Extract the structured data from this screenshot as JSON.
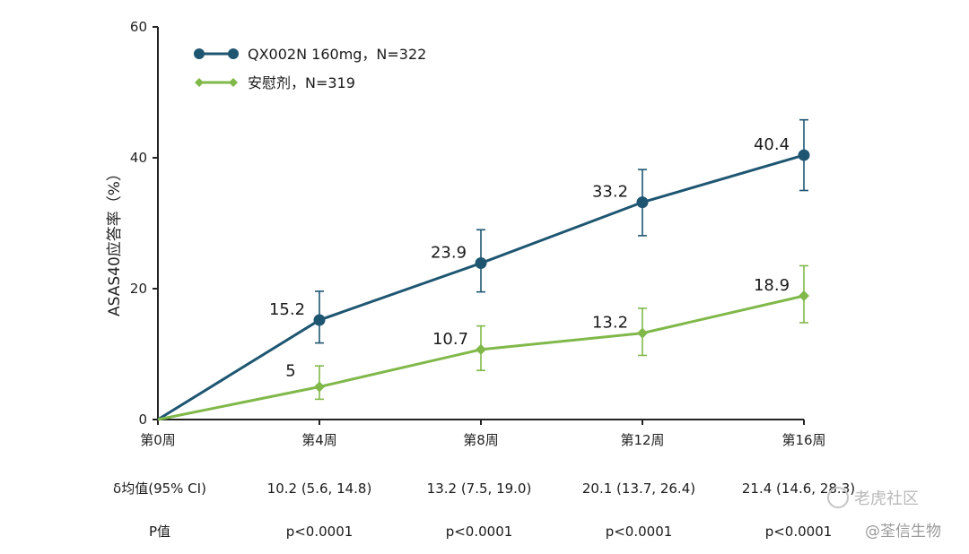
{
  "colors": {
    "qx": "#1e5672",
    "placebo": "#80b84a",
    "axis": "#222222"
  },
  "chart_data": {
    "type": "line",
    "ylabel": "ASAS40应答率（%）",
    "xlabel": "",
    "categories": [
      "第0周",
      "第4周",
      "第8周",
      "第12周",
      "第16周"
    ],
    "ylim": [
      0,
      60
    ],
    "yticks": [
      0,
      20,
      40,
      60
    ],
    "legend_position": "top-left",
    "grid": false,
    "series": [
      {
        "name": "QX002N 160mg，N=322",
        "color": "#1e5672",
        "marker": "circle",
        "values": [
          0,
          15.2,
          23.9,
          33.2,
          40.4
        ],
        "labels": [
          "",
          "15.2",
          "23.9",
          "33.2",
          "40.4"
        ],
        "error_low": [
          null,
          11.7,
          19.5,
          28.1,
          35.0
        ],
        "error_high": [
          null,
          19.6,
          29.0,
          38.2,
          45.8
        ]
      },
      {
        "name": "安慰剂，N=319",
        "color": "#80b84a",
        "marker": "diamond",
        "values": [
          0,
          5,
          10.7,
          13.2,
          18.9
        ],
        "labels": [
          "",
          "5",
          "10.7",
          "13.2",
          "18.9"
        ],
        "error_low": [
          null,
          3.1,
          7.5,
          9.8,
          14.8
        ],
        "error_high": [
          null,
          8.2,
          14.3,
          17.0,
          23.5
        ]
      }
    ]
  },
  "table": {
    "rows": [
      {
        "label": "δ均值(95% CI)",
        "values": [
          "10.2 (5.6, 14.8)",
          "13.2 (7.5, 19.0)",
          "20.1 (13.7, 26.4)",
          "21.4 (14.6, 28.3)"
        ]
      },
      {
        "label": "P值",
        "values": [
          "p<0.0001",
          "p<0.0001",
          "p<0.0001",
          "p<0.0001"
        ]
      }
    ]
  },
  "watermarks": {
    "top": "老虎社区",
    "bottom": "@荃信生物"
  }
}
